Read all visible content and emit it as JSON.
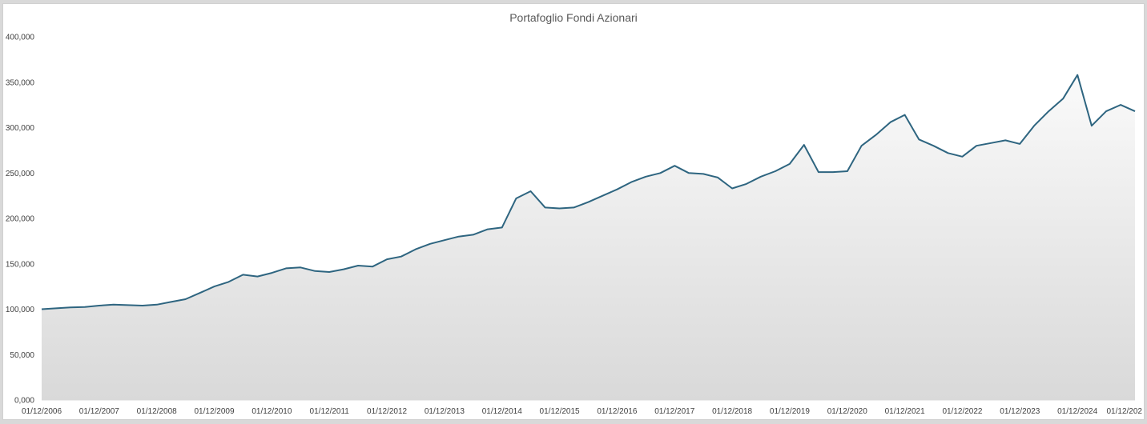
{
  "chart_data": {
    "type": "area",
    "title": "Portafoglio Fondi Azionari",
    "xlabel": "",
    "ylabel": "",
    "ylim": [
      0,
      400000
    ],
    "grid": false,
    "legend": "none",
    "y_ticks": [
      "400,000",
      "350,000",
      "300,000",
      "250,000",
      "200,000",
      "150,000",
      "100,000",
      "50,000",
      "0,000"
    ],
    "y_tick_values": [
      400000,
      350000,
      300000,
      250000,
      200000,
      150000,
      100000,
      50000,
      0
    ],
    "x_ticks": [
      "01/12/2006",
      "01/12/2007",
      "01/12/2008",
      "01/12/2009",
      "01/12/2010",
      "01/12/2011",
      "01/12/2012",
      "01/12/2013",
      "01/12/2014",
      "01/12/2015",
      "01/12/2016",
      "01/12/2017",
      "01/12/2018",
      "01/12/2019",
      "01/12/2020",
      "01/12/2021",
      "01/12/2022",
      "01/12/2023",
      "01/12/2024",
      "01/12/202"
    ],
    "x_range": [
      "2006-12-01",
      "2025-12-01"
    ],
    "colors": {
      "line": "#2e6580",
      "fill_top": "#fafafa",
      "fill_bottom": "#d9d9d9"
    },
    "series": [
      {
        "x": [
          "2006-12-01",
          "2007-03-01",
          "2007-06-01",
          "2007-09-01",
          "2007-12-01",
          "2008-03-01",
          "2008-06-01",
          "2008-09-01",
          "2008-12-01",
          "2009-03-01",
          "2009-06-01",
          "2009-09-01",
          "2009-12-01",
          "2010-03-01",
          "2010-06-01",
          "2010-09-01",
          "2010-12-01",
          "2011-03-01",
          "2011-06-01",
          "2011-09-01",
          "2011-12-01",
          "2012-03-01",
          "2012-06-01",
          "2012-09-01",
          "2012-12-01",
          "2013-03-01",
          "2013-06-01",
          "2013-09-01",
          "2013-12-01",
          "2014-03-01",
          "2014-06-01",
          "2014-09-01",
          "2014-12-01",
          "2015-03-01",
          "2015-06-01",
          "2015-09-01",
          "2015-12-01",
          "2016-03-01",
          "2016-06-01",
          "2016-09-01",
          "2016-12-01",
          "2017-03-01",
          "2017-06-01",
          "2017-09-01",
          "2017-12-01",
          "2018-03-01",
          "2018-06-01",
          "2018-09-01",
          "2018-12-01",
          "2019-03-01",
          "2019-06-01",
          "2019-09-01",
          "2019-12-01",
          "2020-03-01",
          "2020-06-01",
          "2020-09-01",
          "2020-12-01",
          "2021-03-01",
          "2021-06-01",
          "2021-09-01",
          "2021-12-01",
          "2022-03-01",
          "2022-06-01",
          "2022-09-01",
          "2022-12-01",
          "2023-03-01",
          "2023-06-01",
          "2023-09-01",
          "2023-12-01",
          "2024-03-01",
          "2024-06-01",
          "2024-09-01",
          "2024-12-01",
          "2025-03-01",
          "2025-06-01",
          "2025-09-01",
          "2025-12-01"
        ],
        "values": [
          100000,
          101000,
          102000,
          102500,
          104000,
          105000,
          104500,
          104000,
          105000,
          108000,
          111000,
          118000,
          125000,
          130000,
          138000,
          136000,
          140000,
          145000,
          146000,
          142000,
          141000,
          144000,
          148000,
          147000,
          155000,
          158000,
          166000,
          172000,
          176000,
          180000,
          182000,
          188000,
          190000,
          222000,
          230000,
          212000,
          211000,
          212000,
          218000,
          225000,
          232000,
          240000,
          246000,
          250000,
          258000,
          250000,
          249000,
          245000,
          233000,
          238000,
          246000,
          252000,
          260000,
          281000,
          251000,
          251000,
          252000,
          280000,
          292000,
          306000,
          314000,
          287000,
          280000,
          272000,
          268000,
          280000,
          283000,
          286000,
          282000,
          302000,
          318000,
          332000,
          358000,
          302000,
          318000,
          325000,
          318000
        ]
      }
    ]
  }
}
